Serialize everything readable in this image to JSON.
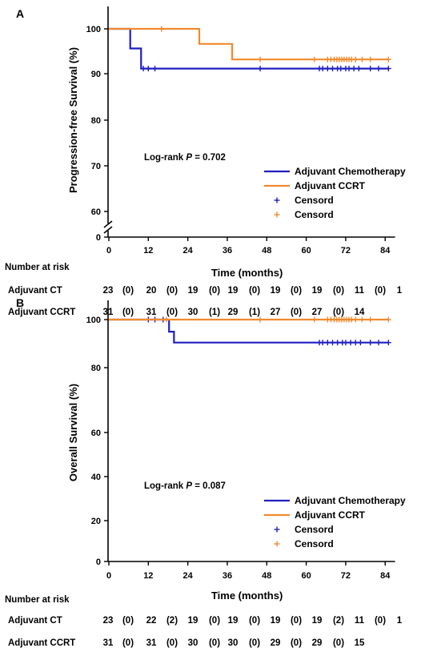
{
  "chart_data": [
    {
      "type": "line",
      "panel": "A",
      "ylabel": "Progression-free Survival (%)",
      "xlabel": "Time (months)",
      "x_ticks": [
        0,
        12,
        24,
        36,
        48,
        60,
        72,
        84
      ],
      "y_ticks": [
        0,
        60,
        70,
        80,
        90,
        100
      ],
      "y_axis_break": true,
      "xlim": [
        0,
        87
      ],
      "annotation": "Log-rank P = 0.702",
      "series": [
        {
          "name": "Adjuvant Chemotherapy",
          "color": "#1f1fbf",
          "steps": [
            [
              0,
              100
            ],
            [
              6.5,
              95.7
            ],
            [
              9.8,
              91.3
            ],
            [
              85,
              91.3
            ]
          ],
          "censor_marker_label": "Censord",
          "censors": [
            10.5,
            12,
            14,
            46,
            64,
            65,
            66.5,
            68,
            69.5,
            70.5,
            72,
            73,
            74.5,
            76,
            79.5,
            82,
            85
          ]
        },
        {
          "name": "Adjuvant CCRT",
          "color": "#f08a2e",
          "steps": [
            [
              0,
              100
            ],
            [
              27.5,
              96.7
            ],
            [
              37.5,
              93.3
            ],
            [
              85,
              93.3
            ]
          ],
          "censor_marker_label": "Censord",
          "censors": [
            16,
            46,
            62.5,
            66.5,
            67.5,
            68.5,
            69.3,
            70,
            70.8,
            71.5,
            72.3,
            73,
            73.8,
            75,
            77,
            79.5,
            85
          ]
        }
      ],
      "legend": [
        {
          "label": "Adjuvant Chemotherapy",
          "kind": "line",
          "color": "#1f1fbf"
        },
        {
          "label": "Adjuvant CCRT",
          "kind": "line",
          "color": "#f08a2e"
        },
        {
          "label": "Censord",
          "kind": "cross",
          "color": "#1f1fbf"
        },
        {
          "label": "Censord",
          "kind": "cross",
          "color": "#f08a2e"
        }
      ],
      "risk_table": {
        "title": "Number at risk",
        "rows": [
          {
            "label": "Adjuvant CT",
            "values": [
              "23",
              "(0)",
              "20",
              "(0)",
              "19",
              "(0)",
              "19",
              "(0)",
              "19",
              "(0)",
              "19",
              "(0)",
              "11",
              "(0)",
              "1"
            ]
          },
          {
            "label": "Adjuvant CCRT",
            "values": [
              "31",
              "(0)",
              "31",
              "(0)",
              "30",
              "(1)",
              "29",
              "(1)",
              "27",
              "(0)",
              "27",
              "(0)",
              "14"
            ]
          }
        ]
      }
    },
    {
      "type": "line",
      "panel": "B",
      "ylabel": "Overall Survival (%)",
      "xlabel": "Time (months)",
      "x_ticks": [
        0,
        12,
        24,
        36,
        48,
        60,
        72,
        84
      ],
      "y_ticks": [
        0,
        20,
        40,
        60,
        80,
        100
      ],
      "y_axis_break": false,
      "xlim": [
        0,
        87
      ],
      "ylim": [
        0,
        105
      ],
      "annotation": "Log-rank P = 0.087",
      "series": [
        {
          "name": "Adjuvant Chemotherapy",
          "color": "#1f1fbf",
          "steps": [
            [
              0,
              100
            ],
            [
              18.3,
              95
            ],
            [
              19.8,
              90.5
            ],
            [
              85,
              90.5
            ]
          ],
          "censor_marker_label": "Censord",
          "censors": [
            12,
            14,
            16.5,
            64,
            65,
            66.5,
            68,
            69.5,
            71,
            72,
            73.5,
            75,
            76.5,
            79.5,
            82,
            85
          ]
        },
        {
          "name": "Adjuvant CCRT",
          "color": "#f08a2e",
          "steps": [
            [
              0,
              100
            ],
            [
              85,
              100
            ]
          ],
          "censor_marker_label": "Censord",
          "censors": [
            17.5,
            46,
            62.5,
            66.5,
            67.5,
            68.5,
            69.3,
            70,
            70.8,
            71.5,
            72.3,
            73,
            73.8,
            75,
            77,
            79.5,
            85
          ]
        }
      ],
      "legend": [
        {
          "label": "Adjuvant Chemotherapy",
          "kind": "line",
          "color": "#1f1fbf"
        },
        {
          "label": "Adjuvant CCRT",
          "kind": "line",
          "color": "#f08a2e"
        },
        {
          "label": "Censord",
          "kind": "cross",
          "color": "#1f1fbf"
        },
        {
          "label": "Censord",
          "kind": "cross",
          "color": "#f08a2e"
        }
      ],
      "risk_table": {
        "title": "Number at risk",
        "rows": [
          {
            "label": "Adjuvant CT",
            "values": [
              "23",
              "(0)",
              "22",
              "(2)",
              "19",
              "(0)",
              "19",
              "(0)",
              "19",
              "(0)",
              "19",
              "(2)",
              "11",
              "(0)",
              "1"
            ]
          },
          {
            "label": "Adjuvant CCRT",
            "values": [
              "31",
              "(0)",
              "31",
              "(0)",
              "30",
              "(0)",
              "30",
              "(0)",
              "29",
              "(0)",
              "29",
              "(0)",
              "15"
            ]
          }
        ]
      }
    }
  ]
}
